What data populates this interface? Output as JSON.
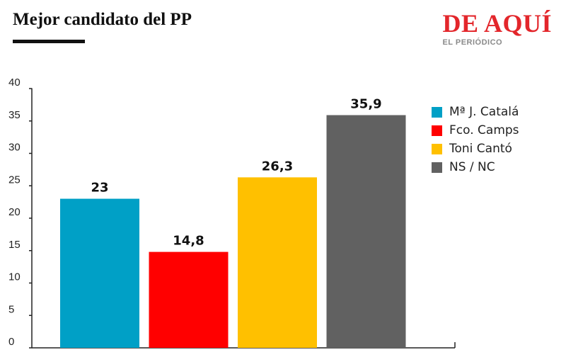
{
  "header": {
    "title": "Mejor candidato del PP",
    "brand_name": "DE AQUÍ",
    "brand_sub": "EL PERIÓDICO"
  },
  "colors": {
    "brand": "#e3262b",
    "axis": "#222222"
  },
  "chart_data": {
    "type": "bar",
    "categories": [
      "Mª J. Catalá",
      "Fco. Camps",
      "Toni Cantó",
      "NS / NC"
    ],
    "values": [
      23,
      14.8,
      26.3,
      35.9
    ],
    "value_labels": [
      "23",
      "14,8",
      "26,3",
      "35,9"
    ],
    "colors": [
      "#00a0c6",
      "#ff0000",
      "#ffc000",
      "#616161"
    ],
    "title": "Mejor candidato del PP",
    "xlabel": "",
    "ylabel": "",
    "ylim": [
      0,
      40
    ],
    "yticks": [
      "0",
      "5",
      "10",
      "15",
      "20",
      "25",
      "30",
      "35",
      "40"
    ],
    "grid": false,
    "legend": "right"
  }
}
